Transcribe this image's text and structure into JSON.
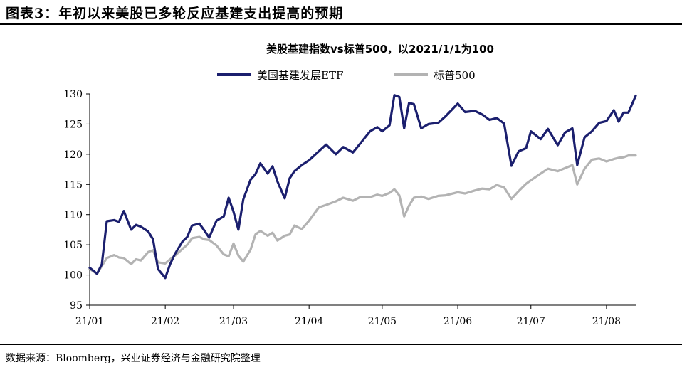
{
  "figure": {
    "title": "图表3：年初以来美股已多轮反应基建支出提高的预期",
    "source": "数据来源：Bloomberg，兴业证券经济与金融研究院整理"
  },
  "colors": {
    "infra": "#1b1f6e",
    "sp500": "#b3b3b3",
    "axis": "#000000"
  },
  "chart_data": {
    "type": "line",
    "title": "美股基建指数vs标普500，以2021/1/1为100",
    "legend_position": "top",
    "grid": false,
    "ylim": [
      95,
      130
    ],
    "yticks": [
      95,
      100,
      105,
      110,
      115,
      120,
      125,
      130
    ],
    "x_range": [
      "2021-01-01",
      "2021-08-13"
    ],
    "x_ticks": [
      {
        "date": "2021-01-01",
        "label": "21/01"
      },
      {
        "date": "2021-02-01",
        "label": "21/02"
      },
      {
        "date": "2021-03-01",
        "label": "21/03"
      },
      {
        "date": "2021-04-01",
        "label": "21/04"
      },
      {
        "date": "2021-05-01",
        "label": "21/05"
      },
      {
        "date": "2021-06-01",
        "label": "21/06"
      },
      {
        "date": "2021-07-01",
        "label": "21/07"
      },
      {
        "date": "2021-08-01",
        "label": "21/08"
      }
    ],
    "series": [
      {
        "name": "美国基建发展ETF",
        "color": "#1b1f6e",
        "dates": [
          "2021-01-01",
          "2021-01-04",
          "2021-01-06",
          "2021-01-08",
          "2021-01-11",
          "2021-01-13",
          "2021-01-15",
          "2021-01-18",
          "2021-01-20",
          "2021-01-22",
          "2021-01-25",
          "2021-01-27",
          "2021-01-29",
          "2021-02-01",
          "2021-02-03",
          "2021-02-05",
          "2021-02-08",
          "2021-02-10",
          "2021-02-12",
          "2021-02-15",
          "2021-02-17",
          "2021-02-19",
          "2021-02-22",
          "2021-02-25",
          "2021-02-27",
          "2021-03-01",
          "2021-03-03",
          "2021-03-05",
          "2021-03-08",
          "2021-03-10",
          "2021-03-12",
          "2021-03-15",
          "2021-03-17",
          "2021-03-19",
          "2021-03-22",
          "2021-03-24",
          "2021-03-26",
          "2021-03-29",
          "2021-04-01",
          "2021-04-05",
          "2021-04-08",
          "2021-04-12",
          "2021-04-15",
          "2021-04-19",
          "2021-04-22",
          "2021-04-26",
          "2021-04-29",
          "2021-05-01",
          "2021-05-04",
          "2021-05-06",
          "2021-05-08",
          "2021-05-10",
          "2021-05-12",
          "2021-05-14",
          "2021-05-17",
          "2021-05-20",
          "2021-05-24",
          "2021-05-27",
          "2021-06-01",
          "2021-06-04",
          "2021-06-08",
          "2021-06-11",
          "2021-06-14",
          "2021-06-17",
          "2021-06-20",
          "2021-06-23",
          "2021-06-26",
          "2021-06-29",
          "2021-07-01",
          "2021-07-05",
          "2021-07-08",
          "2021-07-12",
          "2021-07-15",
          "2021-07-18",
          "2021-07-20",
          "2021-07-23",
          "2021-07-26",
          "2021-07-29",
          "2021-08-01",
          "2021-08-04",
          "2021-08-06",
          "2021-08-08",
          "2021-08-10",
          "2021-08-13"
        ],
        "values": [
          101.2,
          100.2,
          101.8,
          108.9,
          109.1,
          108.8,
          110.6,
          107.5,
          108.3,
          108.0,
          107.2,
          105.9,
          101.0,
          99.5,
          101.8,
          103.5,
          105.5,
          106.3,
          108.2,
          108.5,
          107.4,
          106.2,
          109.0,
          109.7,
          112.8,
          110.5,
          107.5,
          112.5,
          115.8,
          116.7,
          118.5,
          116.8,
          118.0,
          115.5,
          112.7,
          116.0,
          117.2,
          118.2,
          119.0,
          120.5,
          121.6,
          120.0,
          121.2,
          120.3,
          121.8,
          123.8,
          124.5,
          123.8,
          124.8,
          129.8,
          129.5,
          124.3,
          128.5,
          128.3,
          124.3,
          125.0,
          125.2,
          126.3,
          128.4,
          127.0,
          127.2,
          126.6,
          125.7,
          126.0,
          125.1,
          118.1,
          120.5,
          121.0,
          123.8,
          122.5,
          124.2,
          121.5,
          123.6,
          124.3,
          118.2,
          122.8,
          123.8,
          125.2,
          125.5,
          127.3,
          125.4,
          126.9,
          126.9,
          129.7
        ]
      },
      {
        "name": "标普500",
        "color": "#b3b3b3",
        "dates": [
          "2021-01-01",
          "2021-01-04",
          "2021-01-06",
          "2021-01-08",
          "2021-01-11",
          "2021-01-13",
          "2021-01-15",
          "2021-01-18",
          "2021-01-20",
          "2021-01-22",
          "2021-01-25",
          "2021-01-27",
          "2021-01-29",
          "2021-02-01",
          "2021-02-03",
          "2021-02-05",
          "2021-02-08",
          "2021-02-10",
          "2021-02-12",
          "2021-02-15",
          "2021-02-17",
          "2021-02-19",
          "2021-02-22",
          "2021-02-25",
          "2021-02-27",
          "2021-03-01",
          "2021-03-03",
          "2021-03-05",
          "2021-03-08",
          "2021-03-10",
          "2021-03-12",
          "2021-03-15",
          "2021-03-17",
          "2021-03-19",
          "2021-03-22",
          "2021-03-24",
          "2021-03-26",
          "2021-03-29",
          "2021-04-01",
          "2021-04-05",
          "2021-04-08",
          "2021-04-12",
          "2021-04-15",
          "2021-04-19",
          "2021-04-22",
          "2021-04-26",
          "2021-04-29",
          "2021-05-01",
          "2021-05-04",
          "2021-05-06",
          "2021-05-08",
          "2021-05-10",
          "2021-05-12",
          "2021-05-14",
          "2021-05-17",
          "2021-05-20",
          "2021-05-24",
          "2021-05-27",
          "2021-06-01",
          "2021-06-04",
          "2021-06-08",
          "2021-06-11",
          "2021-06-14",
          "2021-06-17",
          "2021-06-20",
          "2021-06-23",
          "2021-06-26",
          "2021-06-29",
          "2021-07-01",
          "2021-07-05",
          "2021-07-08",
          "2021-07-12",
          "2021-07-15",
          "2021-07-18",
          "2021-07-20",
          "2021-07-23",
          "2021-07-26",
          "2021-07-29",
          "2021-08-01",
          "2021-08-04",
          "2021-08-06",
          "2021-08-08",
          "2021-08-10",
          "2021-08-13"
        ],
        "values": [
          101.0,
          100.2,
          101.5,
          102.8,
          103.3,
          102.9,
          102.8,
          101.8,
          102.6,
          102.4,
          103.8,
          104.1,
          102.1,
          101.9,
          102.6,
          103.2,
          104.3,
          105.0,
          106.1,
          106.3,
          105.9,
          105.8,
          104.9,
          103.4,
          103.1,
          105.2,
          103.2,
          102.2,
          104.2,
          106.7,
          107.3,
          106.5,
          107.0,
          105.7,
          106.5,
          106.7,
          108.2,
          107.6,
          109.0,
          111.2,
          111.6,
          112.2,
          112.8,
          112.3,
          112.9,
          112.9,
          113.3,
          113.1,
          113.6,
          114.2,
          113.2,
          109.7,
          111.5,
          112.8,
          113.0,
          112.6,
          113.1,
          113.2,
          113.7,
          113.5,
          114.0,
          114.3,
          114.2,
          114.9,
          114.5,
          112.6,
          113.9,
          115.1,
          115.7,
          116.8,
          117.6,
          117.2,
          117.7,
          118.2,
          115.0,
          117.6,
          119.1,
          119.3,
          118.8,
          119.2,
          119.4,
          119.5,
          119.8,
          119.8
        ]
      }
    ]
  }
}
